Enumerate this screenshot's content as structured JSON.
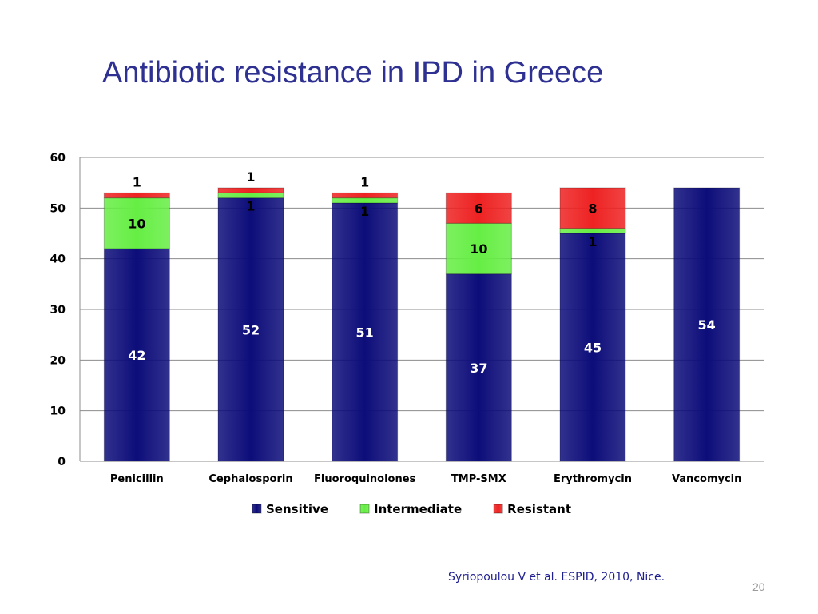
{
  "slide": {
    "title": "Antibiotic resistance in IPD in Greece",
    "citation": "Syriopoulou V et al. ESPID, 2010, Nice.",
    "page_number": "20"
  },
  "chart_data": {
    "type": "bar",
    "stacked": true,
    "categories": [
      "Penicillin",
      "Cephalosporin",
      "Fluoroquinolones",
      "TMP-SMX",
      "Erythromycin",
      "Vancomycin"
    ],
    "series": [
      {
        "name": "Sensitive",
        "values": [
          42,
          52,
          51,
          37,
          45,
          54
        ],
        "color": "#0d0d7a"
      },
      {
        "name": "Intermediate",
        "values": [
          10,
          1,
          1,
          10,
          1,
          0
        ],
        "color": "#66ee44"
      },
      {
        "name": "Resistant",
        "values": [
          1,
          1,
          1,
          6,
          8,
          0
        ],
        "color": "#ee2222"
      }
    ],
    "ylim": [
      0,
      60
    ],
    "yticks": [
      0,
      10,
      20,
      30,
      40,
      50,
      60
    ],
    "grid": true,
    "legend_position": "bottom",
    "data_label_colors": {
      "Sensitive": "#ffffff",
      "Intermediate": "#000000",
      "Resistant": "#000000"
    }
  }
}
